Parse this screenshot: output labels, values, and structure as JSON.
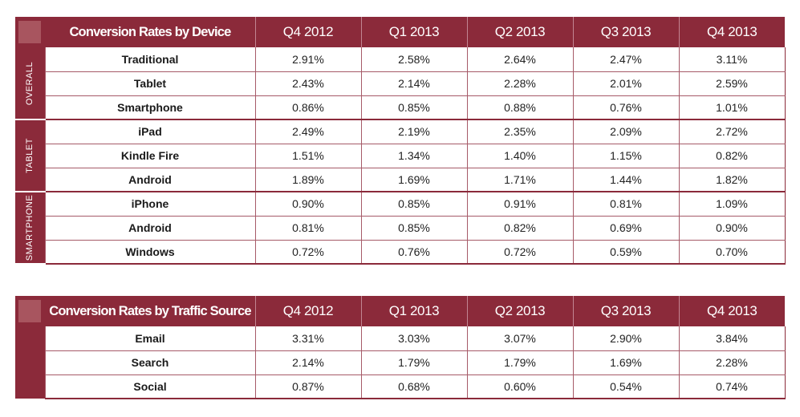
{
  "device_table": {
    "title": "Conversion Rates by Device",
    "quarters": [
      "Q4 2012",
      "Q1 2013",
      "Q2 2013",
      "Q3 2013",
      "Q4 2013"
    ],
    "groups": [
      {
        "name": "OVERALL",
        "rows": [
          {
            "label": "Traditional",
            "values": [
              "2.91%",
              "2.58%",
              "2.64%",
              "2.47%",
              "3.11%"
            ]
          },
          {
            "label": "Tablet",
            "values": [
              "2.43%",
              "2.14%",
              "2.28%",
              "2.01%",
              "2.59%"
            ]
          },
          {
            "label": "Smartphone",
            "values": [
              "0.86%",
              "0.85%",
              "0.88%",
              "0.76%",
              "1.01%"
            ]
          }
        ]
      },
      {
        "name": "TABLET",
        "rows": [
          {
            "label": "iPad",
            "values": [
              "2.49%",
              "2.19%",
              "2.35%",
              "2.09%",
              "2.72%"
            ]
          },
          {
            "label": "Kindle Fire",
            "values": [
              "1.51%",
              "1.34%",
              "1.40%",
              "1.15%",
              "0.82%"
            ]
          },
          {
            "label": "Android",
            "values": [
              "1.89%",
              "1.69%",
              "1.71%",
              "1.44%",
              "1.82%"
            ]
          }
        ]
      },
      {
        "name": "SMARTPHONE",
        "rows": [
          {
            "label": "iPhone",
            "values": [
              "0.90%",
              "0.85%",
              "0.91%",
              "0.81%",
              "1.09%"
            ]
          },
          {
            "label": "Android",
            "values": [
              "0.81%",
              "0.85%",
              "0.82%",
              "0.69%",
              "0.90%"
            ]
          },
          {
            "label": "Windows",
            "values": [
              "0.72%",
              "0.76%",
              "0.72%",
              "0.59%",
              "0.70%"
            ]
          }
        ]
      }
    ]
  },
  "traffic_table": {
    "title": "Conversion Rates by Traffic Source",
    "quarters": [
      "Q4 2012",
      "Q1 2013",
      "Q2 2013",
      "Q3 2013",
      "Q4 2013"
    ],
    "rows": [
      {
        "label": "Email",
        "values": [
          "3.31%",
          "3.03%",
          "3.07%",
          "2.90%",
          "3.84%"
        ]
      },
      {
        "label": "Search",
        "values": [
          "2.14%",
          "1.79%",
          "1.79%",
          "1.69%",
          "2.28%"
        ]
      },
      {
        "label": "Social",
        "values": [
          "0.87%",
          "0.68%",
          "0.60%",
          "0.54%",
          "0.74%"
        ]
      }
    ]
  }
}
